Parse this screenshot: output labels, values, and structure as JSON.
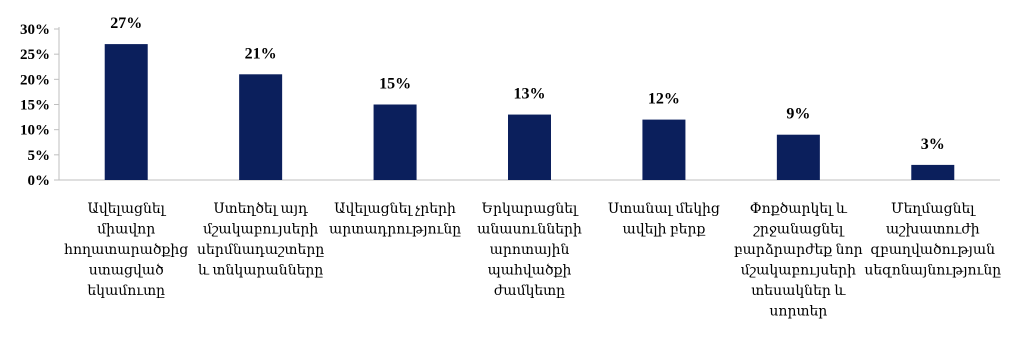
{
  "chart_data": {
    "type": "bar",
    "title": "",
    "xlabel": "",
    "ylabel": "",
    "ylim": [
      0,
      30
    ],
    "yticks": [
      "0%",
      "5%",
      "10%",
      "15%",
      "20%",
      "25%",
      "30%"
    ],
    "grid": false,
    "legend": "none",
    "bar_color": "#0b1f5c",
    "categories": [
      [
        "Ավելացնել",
        "միավոր",
        "հողատարածքից",
        "ստացված",
        "եկամուտը"
      ],
      [
        "Ստեղծել այդ",
        "մշակաբույսերի",
        "սերմնադաշտերը",
        "և տնկարանները"
      ],
      [
        "Ավելացնել չրերի",
        "արտադրությունը"
      ],
      [
        "Երկարացնել",
        "անասունների",
        "արոտային",
        "պահվածքի",
        "ժամկետը"
      ],
      [
        "Ստանալ մեկից",
        "ավելի բերք"
      ],
      [
        "Փոքծարկել և",
        "շրջանացնել",
        "բարձրարժեք նոր",
        "մշակաբույսերի",
        "տեսակներ և",
        "սորտեր"
      ],
      [
        "Մեղմացնել",
        "աշխատուժի",
        "զբաղվածության",
        "սեզոնայնությունը"
      ]
    ],
    "values": [
      27,
      21,
      15,
      13,
      12,
      9,
      3
    ],
    "value_labels": [
      "27%",
      "21%",
      "15%",
      "13%",
      "12%",
      "9%",
      "3%"
    ]
  }
}
